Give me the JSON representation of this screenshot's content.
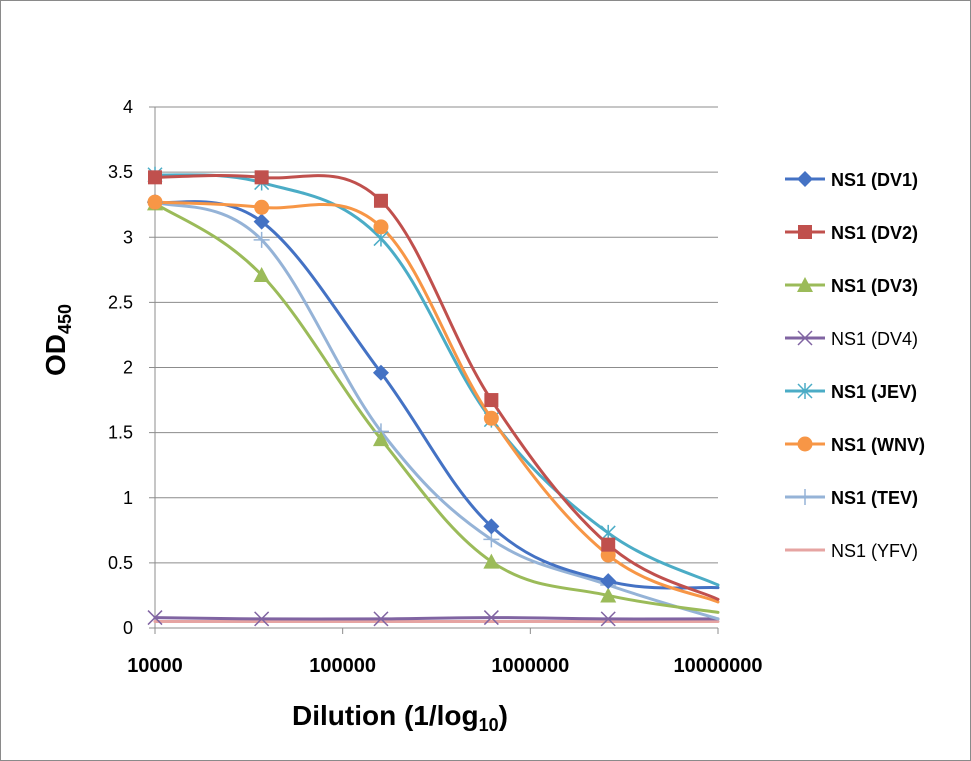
{
  "chart_data": {
    "type": "line",
    "xlabel": "Dilution (1/log",
    "xlabel_sub": "10",
    "xlabel_suffix": ")",
    "ylabel": "OD",
    "ylabel_sub": "450",
    "x_scale": "log",
    "xlim": [
      10000,
      10000000
    ],
    "ylim": [
      0,
      4
    ],
    "x_ticks": [
      "10000",
      "100000",
      "1000000",
      "10000000"
    ],
    "y_ticks": [
      "0",
      "0.5",
      "1",
      "1.5",
      "2",
      "2.5",
      "3",
      "3.5",
      "4"
    ],
    "grid": "horizontal",
    "legend_position": "right",
    "x": [
      10000,
      37000,
      160000,
      620000,
      2600000,
      10000000
    ],
    "series": [
      {
        "name": "NS1 (DV1)",
        "color": "#4472C4",
        "marker": "diamond",
        "label_bold": true,
        "values": [
          3.27,
          3.12,
          1.96,
          0.78,
          0.36,
          0.31
        ]
      },
      {
        "name": "NS1 (DV2)",
        "color": "#C0504D",
        "marker": "square",
        "label_bold": true,
        "values": [
          3.46,
          3.46,
          3.28,
          1.75,
          0.64,
          0.22
        ]
      },
      {
        "name": "NS1 (DV3)",
        "color": "#9BBB59",
        "marker": "triangle",
        "label_bold": true,
        "values": [
          3.26,
          2.71,
          1.45,
          0.51,
          0.25,
          0.12
        ]
      },
      {
        "name": "NS1 (DV4)",
        "color": "#8064A2",
        "marker": "x",
        "label_bold": false,
        "values": [
          0.08,
          0.07,
          0.07,
          0.08,
          0.07,
          0.07
        ]
      },
      {
        "name": "NS1 (JEV)",
        "color": "#4BACC6",
        "marker": "asterisk",
        "label_bold": true,
        "values": [
          3.48,
          3.42,
          2.99,
          1.6,
          0.73,
          0.33
        ]
      },
      {
        "name": "NS1 (WNV)",
        "color": "#F79646",
        "marker": "circle",
        "label_bold": true,
        "values": [
          3.27,
          3.23,
          3.08,
          1.61,
          0.56,
          0.2
        ]
      },
      {
        "name": "NS1 (TEV)",
        "color": "#95B3D7",
        "marker": "plus",
        "label_bold": true,
        "values": [
          3.27,
          2.98,
          1.51,
          0.68,
          0.33,
          0.07
        ]
      },
      {
        "name": "NS1 (YFV)",
        "color": "#E6A4A2",
        "marker": "none",
        "label_bold": false,
        "values": [
          0.05,
          0.05,
          0.05,
          0.05,
          0.05,
          0.05
        ]
      }
    ]
  }
}
